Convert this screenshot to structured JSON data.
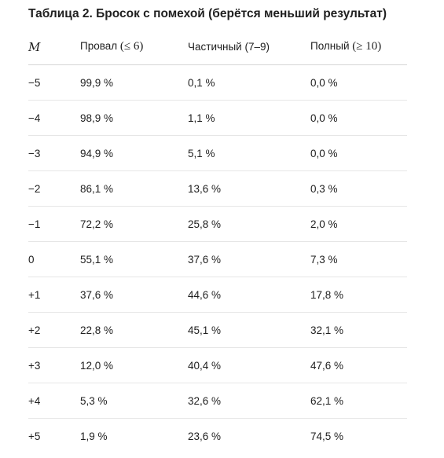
{
  "title": "Таблица 2. Бросок с помехой (берётся меньший результат)",
  "header": {
    "col_m": "M",
    "col_fail_label": "Провал ",
    "col_fail_range": "(≤ 6)",
    "col_partial": "Частичный (7–9)",
    "col_full_label": "Полный ",
    "col_full_range": "(≥ 10)"
  },
  "rows": [
    {
      "m": "−5",
      "fail": "99,9 %",
      "partial": "0,1 %",
      "full": "0,0 %"
    },
    {
      "m": "−4",
      "fail": "98,9 %",
      "partial": "1,1 %",
      "full": "0,0 %"
    },
    {
      "m": "−3",
      "fail": "94,9 %",
      "partial": "5,1 %",
      "full": "0,0 %"
    },
    {
      "m": "−2",
      "fail": "86,1 %",
      "partial": "13,6 %",
      "full": "0,3 %"
    },
    {
      "m": "−1",
      "fail": "72,2 %",
      "partial": "25,8 %",
      "full": "2,0 %"
    },
    {
      "m": "0",
      "fail": "55,1 %",
      "partial": "37,6 %",
      "full": "7,3 %"
    },
    {
      "m": "+1",
      "fail": "37,6 %",
      "partial": "44,6 %",
      "full": "17,8 %"
    },
    {
      "m": "+2",
      "fail": "22,8 %",
      "partial": "45,1 %",
      "full": "32,1 %"
    },
    {
      "m": "+3",
      "fail": "12,0 %",
      "partial": "40,4 %",
      "full": "47,6 %"
    },
    {
      "m": "+4",
      "fail": "5,3 %",
      "partial": "32,6 %",
      "full": "62,1 %"
    },
    {
      "m": "+5",
      "fail": "1,9 %",
      "partial": "23,6 %",
      "full": "74,5 %"
    }
  ]
}
